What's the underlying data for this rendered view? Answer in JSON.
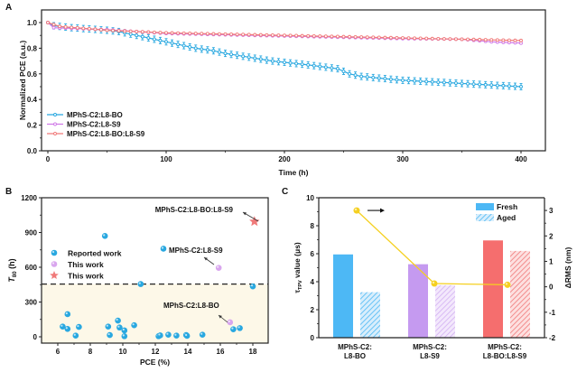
{
  "chart_data": [
    {
      "panel": "A",
      "type": "line",
      "xlabel": "Time (h)",
      "ylabel": "Normalized PCE (a.u.)",
      "xlim": [
        -10,
        420
      ],
      "ylim": [
        0,
        1.1
      ],
      "xticks": [
        0,
        100,
        200,
        300,
        400
      ],
      "yticks": [
        0.0,
        0.2,
        0.4,
        0.6,
        0.8,
        1.0
      ],
      "ytick_labels": [
        "0.0",
        "0.2",
        "0.4",
        "0.6",
        "0.8",
        "1.0"
      ],
      "legend_position": "bottom-left",
      "x": [
        0,
        5,
        10,
        15,
        20,
        25,
        30,
        35,
        40,
        45,
        50,
        55,
        60,
        65,
        70,
        75,
        80,
        85,
        90,
        95,
        100,
        105,
        110,
        115,
        120,
        125,
        130,
        135,
        140,
        145,
        150,
        155,
        160,
        165,
        170,
        175,
        180,
        185,
        190,
        195,
        200,
        205,
        210,
        215,
        220,
        225,
        230,
        235,
        240,
        245,
        250,
        255,
        260,
        265,
        270,
        275,
        280,
        285,
        290,
        295,
        300,
        305,
        310,
        315,
        320,
        325,
        330,
        335,
        340,
        345,
        350,
        355,
        360,
        365,
        370,
        375,
        380,
        385,
        390,
        395,
        400
      ],
      "series": [
        {
          "name": "MPhS-C2:L8-BO",
          "color": "#29a8e0",
          "error": 0.025,
          "values": [
            1.0,
            0.975,
            0.97,
            0.965,
            0.96,
            0.957,
            0.953,
            0.95,
            0.947,
            0.943,
            0.94,
            0.935,
            0.93,
            0.92,
            0.91,
            0.9,
            0.89,
            0.88,
            0.87,
            0.86,
            0.85,
            0.84,
            0.83,
            0.82,
            0.81,
            0.8,
            0.793,
            0.787,
            0.78,
            0.77,
            0.76,
            0.752,
            0.745,
            0.737,
            0.73,
            0.722,
            0.715,
            0.707,
            0.7,
            0.695,
            0.69,
            0.685,
            0.68,
            0.675,
            0.67,
            0.664,
            0.658,
            0.652,
            0.646,
            0.64,
            0.62,
            0.6,
            0.59,
            0.58,
            0.576,
            0.571,
            0.567,
            0.563,
            0.558,
            0.554,
            0.55,
            0.548,
            0.545,
            0.543,
            0.54,
            0.538,
            0.535,
            0.533,
            0.53,
            0.528,
            0.525,
            0.523,
            0.52,
            0.518,
            0.515,
            0.513,
            0.51,
            0.508,
            0.505,
            0.503,
            0.5
          ]
        },
        {
          "name": "MPhS-C2:L8-S9",
          "color": "#d07be8",
          "error": 0.008,
          "values": [
            1.0,
            0.96,
            0.958,
            0.957,
            0.955,
            0.953,
            0.952,
            0.95,
            0.948,
            0.947,
            0.945,
            0.942,
            0.939,
            0.936,
            0.933,
            0.93,
            0.927,
            0.924,
            0.921,
            0.918,
            0.915,
            0.914,
            0.913,
            0.912,
            0.911,
            0.91,
            0.909,
            0.908,
            0.907,
            0.906,
            0.905,
            0.904,
            0.903,
            0.902,
            0.901,
            0.9,
            0.899,
            0.898,
            0.897,
            0.896,
            0.895,
            0.894,
            0.893,
            0.892,
            0.891,
            0.89,
            0.889,
            0.888,
            0.887,
            0.886,
            0.885,
            0.884,
            0.883,
            0.882,
            0.881,
            0.88,
            0.879,
            0.878,
            0.877,
            0.876,
            0.875,
            0.875,
            0.874,
            0.874,
            0.873,
            0.873,
            0.872,
            0.872,
            0.871,
            0.871,
            0.87,
            0.866,
            0.862,
            0.858,
            0.854,
            0.85,
            0.848,
            0.846,
            0.844,
            0.842,
            0.84
          ]
        },
        {
          "name": "MPhS-C2:L8-BO:L8-S9",
          "color": "#f07a7a",
          "error": 0.008,
          "values": [
            1.0,
            0.985,
            0.97,
            0.966,
            0.962,
            0.959,
            0.955,
            0.952,
            0.948,
            0.944,
            0.94,
            0.938,
            0.936,
            0.934,
            0.932,
            0.93,
            0.928,
            0.926,
            0.924,
            0.922,
            0.92,
            0.919,
            0.918,
            0.917,
            0.916,
            0.915,
            0.914,
            0.913,
            0.912,
            0.911,
            0.91,
            0.909,
            0.908,
            0.907,
            0.906,
            0.905,
            0.904,
            0.903,
            0.902,
            0.901,
            0.9,
            0.899,
            0.898,
            0.897,
            0.896,
            0.895,
            0.894,
            0.893,
            0.892,
            0.891,
            0.89,
            0.889,
            0.888,
            0.887,
            0.886,
            0.885,
            0.884,
            0.883,
            0.882,
            0.881,
            0.88,
            0.879,
            0.878,
            0.877,
            0.876,
            0.875,
            0.874,
            0.873,
            0.872,
            0.871,
            0.87,
            0.869,
            0.868,
            0.867,
            0.866,
            0.865,
            0.864,
            0.863,
            0.862,
            0.861,
            0.86
          ]
        }
      ]
    },
    {
      "panel": "B",
      "type": "scatter",
      "xlabel": "PCE (%)",
      "ylabel": "T80 (h)",
      "ylabel_main": "T",
      "ylabel_sub": "80",
      "ylabel_unit": " (h)",
      "xlim": [
        5,
        19
      ],
      "ylim": [
        -50,
        1200
      ],
      "xticks": [
        6,
        8,
        10,
        12,
        14,
        16,
        18
      ],
      "yticks": [
        0,
        300,
        600,
        900,
        1200
      ],
      "threshold_line": 455,
      "legend_position": "middle-left",
      "legend": [
        {
          "label": "Reported work",
          "marker": "circle",
          "color": "#29a8e0"
        },
        {
          "label": "This work",
          "marker": "circle",
          "color": "#d9a6ee"
        },
        {
          "label": "This work",
          "marker": "star",
          "color": "#f07a7a"
        }
      ],
      "series": [
        {
          "name": "Reported work",
          "marker": "circle",
          "color": "#29a8e0",
          "points": [
            [
              6.3,
              88
            ],
            [
              6.6,
              195
            ],
            [
              6.6,
              68
            ],
            [
              7.1,
              10
            ],
            [
              7.3,
              85
            ],
            [
              8.9,
              870
            ],
            [
              9.1,
              88
            ],
            [
              9.2,
              15
            ],
            [
              9.7,
              140
            ],
            [
              9.8,
              80
            ],
            [
              10.1,
              55
            ],
            [
              10.1,
              5
            ],
            [
              10.7,
              100
            ],
            [
              11.1,
              455
            ],
            [
              12.2,
              5
            ],
            [
              12.3,
              12
            ],
            [
              12.5,
              760
            ],
            [
              12.8,
              18
            ],
            [
              13.3,
              10
            ],
            [
              13.9,
              15
            ],
            [
              13.95,
              8
            ],
            [
              14.9,
              18
            ],
            [
              16.8,
              65
            ],
            [
              17.2,
              75
            ],
            [
              18.0,
              435
            ]
          ]
        },
        {
          "name": "This work",
          "marker": "circle",
          "color": "#d9a6ee",
          "points": [
            [
              16.6,
              125
            ],
            [
              15.9,
              595
            ]
          ]
        },
        {
          "name": "This work",
          "marker": "star",
          "color": "#f07a7a",
          "points": [
            [
              18.1,
              995
            ]
          ]
        }
      ],
      "annotations": [
        {
          "text": "MPhS-C2:L8-BO:L8-S9",
          "target": [
            18.1,
            995
          ]
        },
        {
          "text": "MPhS-C2:L8-S9",
          "target": [
            15.9,
            595
          ]
        },
        {
          "text": "MPhS-C2:L8-BO",
          "target": [
            16.6,
            125
          ]
        }
      ]
    },
    {
      "panel": "C",
      "type": "bar",
      "ylabel": "τTPV value (μs)",
      "ylabel_main": "τ",
      "ylabel_sub": "TPV",
      "ylabel_rest": " value (μs)",
      "y2label": "ΔRMS (nm)",
      "ylim": [
        0,
        10
      ],
      "y2lim": [
        -2,
        3.5
      ],
      "yticks": [
        0,
        2,
        4,
        6,
        8,
        10
      ],
      "y2ticks": [
        -2,
        -1,
        0,
        1,
        2,
        3
      ],
      "categories": [
        "MPhS-C2:\nL8-BO",
        "MPhS-C2:\nL8-S9",
        "MPhS-C2:\nL8-BO:L8-S9"
      ],
      "category_lines": [
        [
          "MPhS-C2:",
          "L8-BO"
        ],
        [
          "MPhS-C2:",
          "L8-S9"
        ],
        [
          "MPhS-C2:",
          "L8-BO:L8-S9"
        ]
      ],
      "bar_colors": [
        "#4db8f5",
        "#c59af0",
        "#f56e6e"
      ],
      "series": [
        {
          "name": "Fresh",
          "values": [
            5.95,
            5.25,
            6.95
          ],
          "style": "solid"
        },
        {
          "name": "Aged",
          "values": [
            3.25,
            3.75,
            6.2
          ],
          "style": "hatched"
        }
      ],
      "line_series": {
        "name": "ΔRMS",
        "axis": "right",
        "color": "#f5d020",
        "values": [
          3.0,
          0.13,
          0.08
        ]
      },
      "legend": [
        {
          "label": "Fresh"
        },
        {
          "label": "Aged"
        }
      ],
      "legend_position": "top-right"
    }
  ],
  "panel_labels": [
    "A",
    "B",
    "C"
  ]
}
